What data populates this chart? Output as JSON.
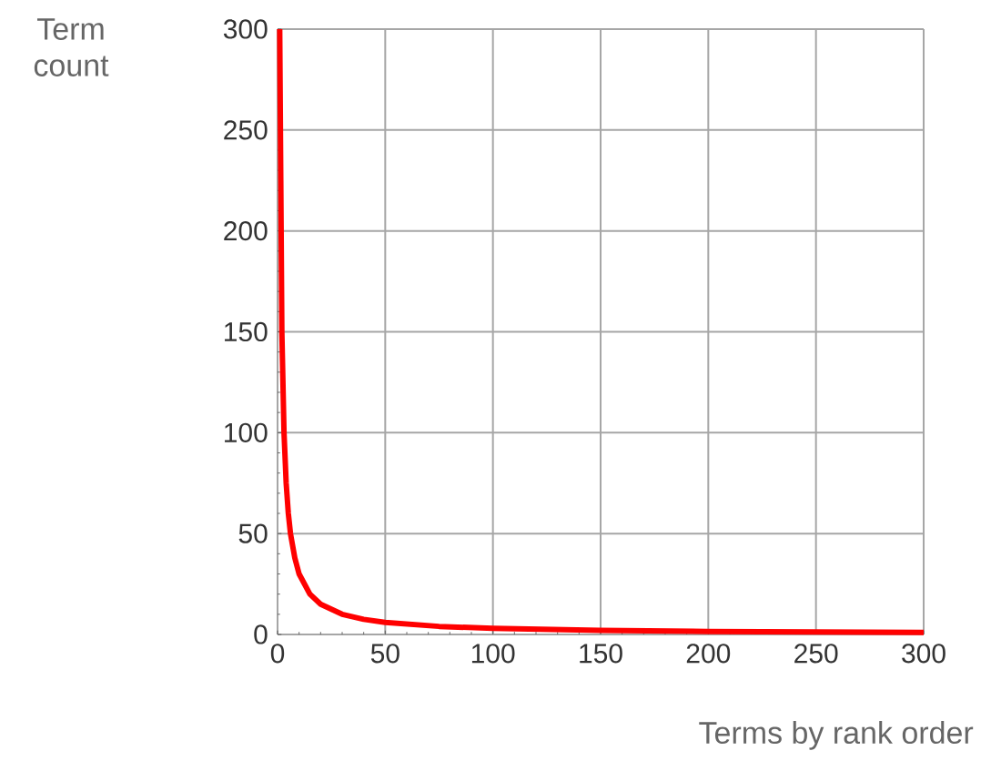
{
  "chart_data": {
    "type": "line",
    "xlabel": "Terms by rank order",
    "ylabel": "Term count",
    "x": [
      1,
      1.5,
      2,
      3,
      4,
      5,
      6,
      8,
      10,
      15,
      20,
      30,
      40,
      50,
      75,
      100,
      150,
      200,
      300
    ],
    "series": [
      {
        "color": "#ff0000",
        "values": [
          300,
          225,
          150,
          100,
          75,
          60,
          50,
          38,
          30,
          20,
          15,
          10,
          7.5,
          6,
          4,
          3,
          2,
          1.5,
          1
        ]
      }
    ],
    "xlim": [
      0,
      300
    ],
    "ylim": [
      0,
      300
    ],
    "xticks": [
      0,
      50,
      100,
      150,
      200,
      250,
      300
    ],
    "yticks": [
      0,
      50,
      100,
      150,
      200,
      250,
      300
    ],
    "grid": true,
    "marker": "none",
    "line_style": "solid"
  }
}
